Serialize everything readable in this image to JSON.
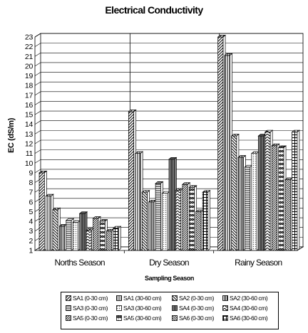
{
  "chart_data": {
    "type": "bar",
    "title": "Electrical Conductivity",
    "xlabel": "Sampling Season",
    "ylabel": "EC (dS/m)",
    "ylim": [
      1,
      23
    ],
    "yticks": [
      1,
      2,
      3,
      4,
      5,
      6,
      7,
      8,
      9,
      10,
      11,
      12,
      13,
      14,
      15,
      16,
      17,
      18,
      19,
      20,
      21,
      22,
      23
    ],
    "grid": true,
    "legend_position": "bottom",
    "categories": [
      "Norths Season",
      "Dry Season",
      "Rainy Season"
    ],
    "series": [
      {
        "name": "SA1 (0-30 cm)",
        "values": [
          9,
          15.3,
          23
        ],
        "pattern": "diag-right"
      },
      {
        "name": "SA1 (30-60 cm)",
        "values": [
          6.6,
          11,
          21.1
        ],
        "pattern": "vertical"
      },
      {
        "name": "SA2 (0-30 cm)",
        "values": [
          5.2,
          7,
          12.8
        ],
        "pattern": "diag-left"
      },
      {
        "name": "SA2 (30-60 cm)",
        "values": [
          3.5,
          6,
          10.6
        ],
        "pattern": "vertical-dense"
      },
      {
        "name": "SA3 (0-30 cm)",
        "values": [
          4.1,
          7.9,
          9.6
        ],
        "pattern": "horizontal"
      },
      {
        "name": "SA3 (30-60 cm)",
        "values": [
          3.9,
          6.9,
          11
        ],
        "pattern": "dots"
      },
      {
        "name": "SA4 (0-30 cm)",
        "values": [
          4.8,
          10.4,
          12.8
        ],
        "pattern": "gradient"
      },
      {
        "name": "SA4 (30-60 cm)",
        "values": [
          3.1,
          7.2,
          13.2
        ],
        "pattern": "zigzag"
      },
      {
        "name": "SA5 (0-30 cm)",
        "values": [
          4.3,
          7.8,
          11.8
        ],
        "pattern": "diag-right-dense"
      },
      {
        "name": "SA5 (30-60 cm)",
        "values": [
          4,
          7.5,
          11.6
        ],
        "pattern": "chevron"
      },
      {
        "name": "SA6 (0-30 cm)",
        "values": [
          3,
          5,
          8.3
        ],
        "pattern": "diag-left-dense"
      },
      {
        "name": "SA6 (30-60 cm)",
        "values": [
          3.3,
          7,
          13.2
        ],
        "pattern": "grid"
      }
    ]
  }
}
